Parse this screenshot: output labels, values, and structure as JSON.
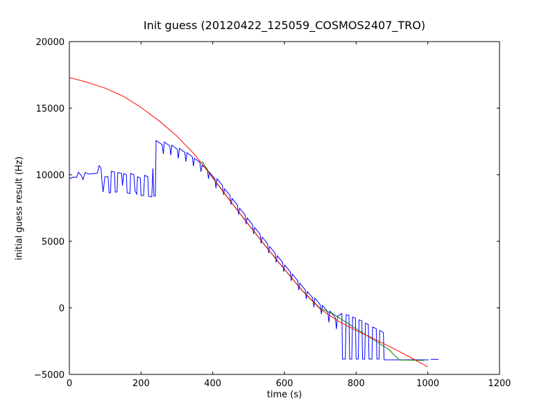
{
  "chart_data": {
    "type": "line",
    "title": "Init guess (20120422_125059_COSMOS2407_TRO)",
    "xlabel": "time (s)",
    "ylabel": "initial guess result (Hz)",
    "xlim": [
      0,
      1200
    ],
    "ylim": [
      -5000,
      20000
    ],
    "x_ticks": [
      0,
      200,
      400,
      600,
      800,
      1000,
      1200
    ],
    "y_ticks": [
      -5000,
      0,
      5000,
      10000,
      15000,
      20000
    ],
    "grid": false,
    "legend": null,
    "frame_color": "#000000",
    "background": "#ffffff",
    "series": [
      {
        "name": "initial-guess-raw",
        "color": "#0000ff",
        "segments": [
          [
            [
              0,
              9690
            ],
            [
              10,
              9820
            ],
            [
              20,
              9800
            ],
            [
              25,
              10190
            ],
            [
              33,
              9950
            ],
            [
              38,
              9640
            ],
            [
              44,
              10160
            ],
            [
              55,
              10050
            ],
            [
              78,
              10110
            ],
            [
              83,
              10680
            ],
            [
              88,
              10500
            ],
            [
              92,
              9220
            ],
            [
              94,
              8700
            ],
            [
              99,
              9850
            ],
            [
              108,
              9850
            ],
            [
              111,
              8640
            ],
            [
              115,
              8640
            ],
            [
              117,
              10260
            ],
            [
              126,
              10200
            ],
            [
              128,
              8700
            ],
            [
              133,
              8700
            ],
            [
              135,
              10160
            ],
            [
              146,
              10100
            ],
            [
              148,
              9170
            ],
            [
              152,
              10100
            ],
            [
              159,
              10000
            ],
            [
              161,
              8640
            ],
            [
              169,
              8590
            ],
            [
              171,
              10100
            ],
            [
              180,
              10000
            ],
            [
              183,
              8800
            ],
            [
              188,
              8540
            ],
            [
              190,
              9850
            ],
            [
              198,
              9740
            ],
            [
              200,
              8440
            ],
            [
              207,
              8440
            ],
            [
              210,
              9950
            ],
            [
              219,
              9850
            ],
            [
              221,
              8390
            ],
            [
              230,
              8330
            ],
            [
              233,
              10470
            ],
            [
              236,
              8400
            ],
            [
              240,
              8400
            ],
            [
              242,
              12560
            ],
            [
              259,
              12260
            ],
            [
              262,
              11560
            ],
            [
              265,
              12460
            ],
            [
              280,
              12160
            ],
            [
              283,
              11460
            ],
            [
              286,
              12220
            ],
            [
              301,
              11920
            ],
            [
              304,
              11220
            ],
            [
              307,
              11980
            ],
            [
              322,
              11680
            ],
            [
              325,
              10980
            ],
            [
              328,
              11650
            ],
            [
              343,
              11350
            ],
            [
              346,
              10650
            ],
            [
              349,
              11230
            ],
            [
              364,
              10930
            ],
            [
              367,
              10230
            ],
            [
              370,
              10700
            ],
            [
              385,
              10400
            ],
            [
              388,
              9700
            ],
            [
              391,
              10190
            ],
            [
              406,
              9690
            ],
            [
              409,
              8990
            ],
            [
              412,
              9700
            ],
            [
              427,
              9200
            ],
            [
              430,
              8500
            ],
            [
              433,
              8950
            ],
            [
              448,
              8450
            ],
            [
              451,
              7750
            ],
            [
              454,
              8210
            ],
            [
              469,
              7710
            ],
            [
              472,
              7010
            ],
            [
              475,
              7480
            ],
            [
              490,
              6980
            ],
            [
              493,
              6280
            ],
            [
              496,
              6750
            ],
            [
              511,
              6250
            ],
            [
              514,
              5550
            ],
            [
              517,
              6030
            ],
            [
              532,
              5530
            ],
            [
              535,
              4830
            ],
            [
              538,
              5310
            ],
            [
              553,
              4810
            ],
            [
              556,
              4110
            ],
            [
              559,
              4600
            ],
            [
              574,
              4100
            ],
            [
              577,
              3400
            ],
            [
              580,
              3910
            ],
            [
              595,
              3410
            ],
            [
              598,
              2710
            ],
            [
              601,
              3220
            ],
            [
              616,
              2720
            ],
            [
              619,
              2020
            ],
            [
              622,
              2530
            ],
            [
              637,
              2040
            ],
            [
              640,
              1340
            ],
            [
              643,
              1850
            ],
            [
              658,
              1360
            ],
            [
              661,
              660
            ],
            [
              664,
              1230
            ],
            [
              679,
              740
            ],
            [
              682,
              40
            ],
            [
              685,
              730
            ],
            [
              700,
              230
            ],
            [
              703,
              -470
            ],
            [
              706,
              190
            ],
            [
              721,
              -310
            ],
            [
              724,
              -1100
            ],
            [
              727,
              -240
            ],
            [
              742,
              -740
            ],
            [
              745,
              -1600
            ],
            [
              748,
              -630
            ],
            [
              760,
              -430
            ],
            [
              762,
              -3850
            ],
            [
              770,
              -3850
            ],
            [
              772,
              -520
            ],
            [
              780,
              -560
            ],
            [
              782,
              -3850
            ],
            [
              788,
              -3850
            ],
            [
              790,
              -700
            ],
            [
              798,
              -760
            ],
            [
              800,
              -3850
            ],
            [
              806,
              -3850
            ],
            [
              808,
              -900
            ],
            [
              816,
              -980
            ],
            [
              818,
              -3850
            ],
            [
              824,
              -3850
            ],
            [
              826,
              -1150
            ],
            [
              834,
              -1250
            ],
            [
              836,
              -3850
            ],
            [
              844,
              -3850
            ],
            [
              846,
              -1450
            ],
            [
              856,
              -1550
            ],
            [
              858,
              -3850
            ],
            [
              864,
              -3850
            ],
            [
              866,
              -1700
            ],
            [
              876,
              -1850
            ],
            [
              878,
              -3880
            ],
            [
              880,
              -3904
            ],
            [
              1002,
              -3904
            ]
          ],
          [
            [
              1008,
              -3870
            ],
            [
              1030,
              -3870
            ]
          ]
        ]
      },
      {
        "name": "smoothed-guess",
        "color": "#008000",
        "segments": [
          [
            [
              370,
              11000
            ],
            [
              400,
              9750
            ],
            [
              450,
              7980
            ],
            [
              500,
              6240
            ],
            [
              550,
              4530
            ],
            [
              600,
              2880
            ],
            [
              650,
              1300
            ],
            [
              700,
              -50
            ],
            [
              735,
              -450
            ],
            [
              750,
              -700
            ],
            [
              800,
              -1560
            ],
            [
              850,
              -2420
            ],
            [
              890,
              -3100
            ],
            [
              921,
              -3920
            ],
            [
              990,
              -3950
            ]
          ]
        ]
      },
      {
        "name": "model-fit",
        "color": "#ff0000",
        "segments": [
          [
            [
              0,
              17300
            ],
            [
              50,
              16950
            ],
            [
              100,
              16500
            ],
            [
              150,
              15900
            ],
            [
              200,
              15050
            ],
            [
              250,
              14050
            ],
            [
              300,
              12900
            ],
            [
              350,
              11500
            ],
            [
              400,
              9780
            ],
            [
              450,
              8000
            ],
            [
              500,
              6260
            ],
            [
              550,
              4550
            ],
            [
              600,
              2900
            ],
            [
              650,
              1280
            ],
            [
              700,
              -100
            ],
            [
              750,
              -1000
            ],
            [
              800,
              -1700
            ],
            [
              850,
              -2330
            ],
            [
              900,
              -2990
            ],
            [
              950,
              -3700
            ],
            [
              1000,
              -4440
            ]
          ]
        ]
      }
    ]
  }
}
